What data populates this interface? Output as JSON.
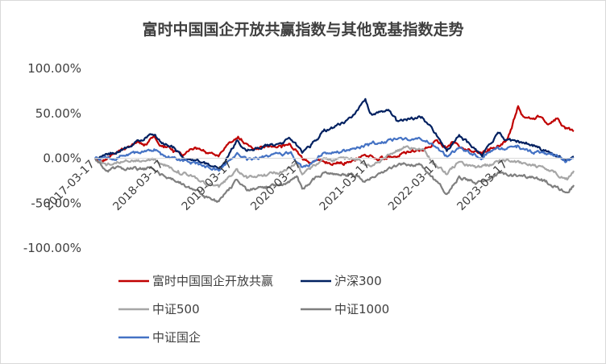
{
  "chart_data": {
    "type": "line",
    "title": "富时中国国企开放共赢指数与其他宽基指数走势",
    "xlabel": "",
    "ylabel": "",
    "ylim": [
      -1.0,
      1.0
    ],
    "y_ticks": [
      -1.0,
      -0.5,
      0.0,
      0.5,
      1.0
    ],
    "y_tick_labels": [
      "-100.00%",
      "-50.00%",
      "0.00%",
      "50.00%",
      "100.00%"
    ],
    "x_tick_labels": [
      "2017-03-17",
      "2018-03-17",
      "2019-03-17",
      "2020-03-17",
      "2021-03-17",
      "2022-03-17",
      "2023-03-17"
    ],
    "x_range": [
      "2017-03-17",
      "2024-02-29"
    ],
    "grid": false,
    "legend_position": "bottom",
    "series": [
      {
        "name": "富时中国国企开放共赢",
        "color": "#c00000",
        "points": [
          [
            "2017-03-17",
            0.0
          ],
          [
            "2017-05-01",
            -0.02
          ],
          [
            "2017-07-01",
            0.05
          ],
          [
            "2017-09-01",
            0.12
          ],
          [
            "2017-11-01",
            0.18
          ],
          [
            "2017-12-01",
            0.14
          ],
          [
            "2018-01-20",
            0.24
          ],
          [
            "2018-03-01",
            0.14
          ],
          [
            "2018-05-01",
            0.1
          ],
          [
            "2018-07-01",
            0.04
          ],
          [
            "2018-09-01",
            0.12
          ],
          [
            "2018-11-01",
            0.06
          ],
          [
            "2019-01-01",
            0.02
          ],
          [
            "2019-03-01",
            0.18
          ],
          [
            "2019-04-15",
            0.24
          ],
          [
            "2019-06-01",
            0.16
          ],
          [
            "2019-08-01",
            0.1
          ],
          [
            "2019-10-01",
            0.14
          ],
          [
            "2019-12-01",
            0.12
          ],
          [
            "2020-01-15",
            0.16
          ],
          [
            "2020-03-20",
            0.0
          ],
          [
            "2020-05-01",
            -0.05
          ],
          [
            "2020-07-01",
            -0.03
          ],
          [
            "2020-09-01",
            -0.06
          ],
          [
            "2020-11-01",
            -0.05
          ],
          [
            "2021-01-01",
            0.0
          ],
          [
            "2021-02-15",
            0.04
          ],
          [
            "2021-05-01",
            -0.02
          ],
          [
            "2021-07-01",
            0.02
          ],
          [
            "2021-09-01",
            0.06
          ],
          [
            "2021-12-01",
            0.08
          ],
          [
            "2022-01-15",
            0.12
          ],
          [
            "2022-03-01",
            0.2
          ],
          [
            "2022-04-26",
            0.12
          ],
          [
            "2022-06-01",
            0.18
          ],
          [
            "2022-08-01",
            0.1
          ],
          [
            "2022-10-31",
            0.04
          ],
          [
            "2022-12-01",
            0.1
          ],
          [
            "2023-01-15",
            0.12
          ],
          [
            "2023-03-01",
            0.18
          ],
          [
            "2023-04-01",
            0.32
          ],
          [
            "2023-05-10",
            0.58
          ],
          [
            "2023-06-01",
            0.48
          ],
          [
            "2023-07-15",
            0.44
          ],
          [
            "2023-09-01",
            0.46
          ],
          [
            "2023-10-20",
            0.38
          ],
          [
            "2023-12-01",
            0.44
          ],
          [
            "2024-01-15",
            0.33
          ],
          [
            "2024-02-29",
            0.3
          ]
        ]
      },
      {
        "name": "沪深300",
        "color": "#002060",
        "points": [
          [
            "2017-03-17",
            0.0
          ],
          [
            "2017-06-01",
            0.04
          ],
          [
            "2017-09-01",
            0.12
          ],
          [
            "2017-11-01",
            0.2
          ],
          [
            "2018-01-25",
            0.26
          ],
          [
            "2018-03-01",
            0.18
          ],
          [
            "2018-05-01",
            0.12
          ],
          [
            "2018-07-01",
            0.0
          ],
          [
            "2018-10-01",
            -0.05
          ],
          [
            "2019-01-03",
            -0.12
          ],
          [
            "2019-04-10",
            0.2
          ],
          [
            "2019-06-01",
            0.08
          ],
          [
            "2019-09-01",
            0.14
          ],
          [
            "2019-12-01",
            0.16
          ],
          [
            "2020-01-15",
            0.22
          ],
          [
            "2020-03-20",
            0.06
          ],
          [
            "2020-05-01",
            0.12
          ],
          [
            "2020-07-10",
            0.3
          ],
          [
            "2020-09-01",
            0.34
          ],
          [
            "2020-11-01",
            0.4
          ],
          [
            "2020-12-31",
            0.52
          ],
          [
            "2021-02-18",
            0.66
          ],
          [
            "2021-03-20",
            0.5
          ],
          [
            "2021-05-01",
            0.52
          ],
          [
            "2021-06-20",
            0.54
          ],
          [
            "2021-08-01",
            0.42
          ],
          [
            "2021-10-01",
            0.44
          ],
          [
            "2021-12-15",
            0.46
          ],
          [
            "2022-01-15",
            0.38
          ],
          [
            "2022-03-15",
            0.22
          ],
          [
            "2022-04-26",
            0.08
          ],
          [
            "2022-07-01",
            0.26
          ],
          [
            "2022-09-01",
            0.14
          ],
          [
            "2022-10-31",
            0.02
          ],
          [
            "2022-12-01",
            0.14
          ],
          [
            "2023-01-28",
            0.28
          ],
          [
            "2023-03-01",
            0.2
          ],
          [
            "2023-05-01",
            0.18
          ],
          [
            "2023-07-01",
            0.16
          ],
          [
            "2023-09-01",
            0.12
          ],
          [
            "2023-11-01",
            0.06
          ],
          [
            "2024-01-20",
            -0.02
          ],
          [
            "2024-02-29",
            0.02
          ]
        ]
      },
      {
        "name": "中证500",
        "color": "#a6a6a6",
        "points": [
          [
            "2017-03-17",
            0.0
          ],
          [
            "2017-05-15",
            -0.08
          ],
          [
            "2017-08-01",
            -0.04
          ],
          [
            "2017-11-01",
            -0.02
          ],
          [
            "2018-01-20",
            -0.02
          ],
          [
            "2018-03-01",
            -0.06
          ],
          [
            "2018-06-01",
            -0.14
          ],
          [
            "2018-09-01",
            -0.22
          ],
          [
            "2018-10-19",
            -0.28
          ],
          [
            "2019-01-03",
            -0.32
          ],
          [
            "2019-04-10",
            -0.12
          ],
          [
            "2019-06-01",
            -0.22
          ],
          [
            "2019-09-01",
            -0.18
          ],
          [
            "2019-12-01",
            -0.16
          ],
          [
            "2020-02-20",
            -0.04
          ],
          [
            "2020-03-20",
            -0.18
          ],
          [
            "2020-05-01",
            -0.12
          ],
          [
            "2020-07-10",
            0.0
          ],
          [
            "2020-09-01",
            -0.02
          ],
          [
            "2020-11-01",
            -0.01
          ],
          [
            "2021-01-15",
            0.0
          ],
          [
            "2021-03-10",
            -0.08
          ],
          [
            "2021-06-01",
            0.0
          ],
          [
            "2021-09-15",
            0.12
          ],
          [
            "2021-12-15",
            0.1
          ],
          [
            "2022-01-15",
            0.02
          ],
          [
            "2022-04-26",
            -0.18
          ],
          [
            "2022-07-01",
            -0.04
          ],
          [
            "2022-10-01",
            -0.1
          ],
          [
            "2022-12-01",
            -0.08
          ],
          [
            "2023-02-01",
            -0.02
          ],
          [
            "2023-04-01",
            -0.04
          ],
          [
            "2023-06-01",
            -0.06
          ],
          [
            "2023-08-01",
            -0.08
          ],
          [
            "2023-10-01",
            -0.12
          ],
          [
            "2024-01-20",
            -0.22
          ],
          [
            "2024-02-29",
            -0.14
          ]
        ]
      },
      {
        "name": "中证1000",
        "color": "#7f7f7f",
        "points": [
          [
            "2017-03-17",
            0.0
          ],
          [
            "2017-05-15",
            -0.14
          ],
          [
            "2017-08-01",
            -0.1
          ],
          [
            "2017-11-01",
            -0.12
          ],
          [
            "2018-01-20",
            -0.12
          ],
          [
            "2018-03-01",
            -0.18
          ],
          [
            "2018-06-01",
            -0.26
          ],
          [
            "2018-09-01",
            -0.36
          ],
          [
            "2018-10-19",
            -0.44
          ],
          [
            "2019-01-03",
            -0.48
          ],
          [
            "2019-04-10",
            -0.24
          ],
          [
            "2019-06-01",
            -0.36
          ],
          [
            "2019-09-01",
            -0.32
          ],
          [
            "2019-12-01",
            -0.3
          ],
          [
            "2020-02-20",
            -0.2
          ],
          [
            "2020-03-20",
            -0.34
          ],
          [
            "2020-05-01",
            -0.28
          ],
          [
            "2020-07-10",
            -0.16
          ],
          [
            "2020-09-01",
            -0.18
          ],
          [
            "2020-11-01",
            -0.18
          ],
          [
            "2021-01-15",
            -0.2
          ],
          [
            "2021-02-10",
            -0.26
          ],
          [
            "2021-06-01",
            -0.14
          ],
          [
            "2021-09-15",
            -0.06
          ],
          [
            "2021-12-15",
            -0.08
          ],
          [
            "2022-01-15",
            -0.16
          ],
          [
            "2022-04-26",
            -0.4
          ],
          [
            "2022-07-01",
            -0.2
          ],
          [
            "2022-10-01",
            -0.28
          ],
          [
            "2022-12-01",
            -0.24
          ],
          [
            "2023-02-01",
            -0.16
          ],
          [
            "2023-04-01",
            -0.18
          ],
          [
            "2023-06-01",
            -0.2
          ],
          [
            "2023-08-01",
            -0.22
          ],
          [
            "2023-10-01",
            -0.26
          ],
          [
            "2024-01-20",
            -0.38
          ],
          [
            "2024-02-29",
            -0.3
          ]
        ]
      },
      {
        "name": "中证国企",
        "color": "#4472c4",
        "points": [
          [
            "2017-03-17",
            0.0
          ],
          [
            "2017-06-01",
            0.0
          ],
          [
            "2017-09-01",
            0.04
          ],
          [
            "2017-11-01",
            0.06
          ],
          [
            "2018-01-25",
            0.1
          ],
          [
            "2018-03-01",
            0.04
          ],
          [
            "2018-06-01",
            -0.02
          ],
          [
            "2018-09-01",
            -0.06
          ],
          [
            "2019-01-03",
            -0.14
          ],
          [
            "2019-04-10",
            0.06
          ],
          [
            "2019-06-01",
            -0.02
          ],
          [
            "2019-09-01",
            0.02
          ],
          [
            "2019-12-01",
            0.04
          ],
          [
            "2020-01-15",
            0.06
          ],
          [
            "2020-03-20",
            -0.1
          ],
          [
            "2020-05-01",
            -0.06
          ],
          [
            "2020-07-10",
            0.06
          ],
          [
            "2020-09-01",
            0.06
          ],
          [
            "2020-11-01",
            0.08
          ],
          [
            "2021-01-15",
            0.12
          ],
          [
            "2021-03-01",
            0.16
          ],
          [
            "2021-06-01",
            0.18
          ],
          [
            "2021-09-15",
            0.22
          ],
          [
            "2021-12-15",
            0.2
          ],
          [
            "2022-01-15",
            0.18
          ],
          [
            "2022-04-26",
            0.02
          ],
          [
            "2022-07-01",
            0.12
          ],
          [
            "2022-10-31",
            0.0
          ],
          [
            "2022-12-01",
            0.06
          ],
          [
            "2023-02-01",
            0.1
          ],
          [
            "2023-05-01",
            0.12
          ],
          [
            "2023-07-01",
            0.08
          ],
          [
            "2023-09-01",
            0.06
          ],
          [
            "2023-11-01",
            0.04
          ],
          [
            "2024-01-20",
            -0.04
          ],
          [
            "2024-02-29",
            0.0
          ]
        ]
      }
    ]
  }
}
